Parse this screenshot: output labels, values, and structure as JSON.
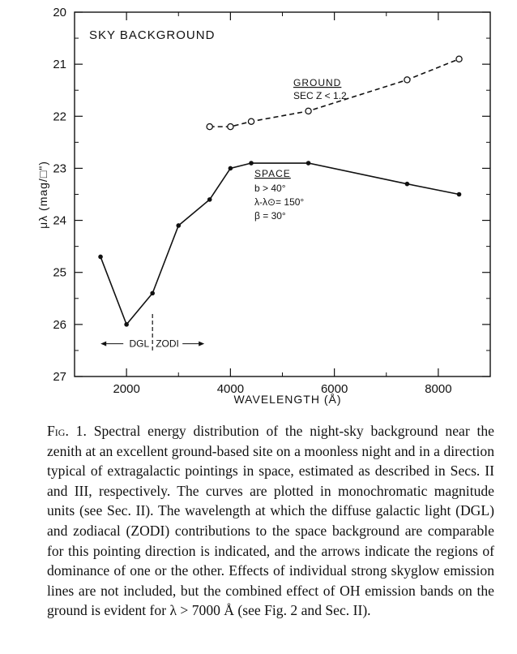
{
  "chart_data": {
    "type": "line",
    "title": "SKY BACKGROUND",
    "xlabel": "WAVELENGTH (Å)",
    "ylabel": "μλ (mag/□\")",
    "xlim": [
      1000,
      9000
    ],
    "ylim": [
      27,
      20
    ],
    "y_inverted": true,
    "grid": false,
    "x_ticks": [
      2000,
      4000,
      6000,
      8000
    ],
    "x_tick_labels": [
      "2000",
      "4000",
      "6000",
      "8000"
    ],
    "y_ticks": [
      20,
      21,
      22,
      23,
      24,
      25,
      26,
      27
    ],
    "y_tick_labels": [
      "20",
      "21",
      "22",
      "23",
      "24",
      "25",
      "26",
      "27"
    ],
    "series": [
      {
        "name": "GROUND",
        "style": "dashed",
        "marker": "open-circle",
        "x": [
          3600,
          4000,
          4400,
          5500,
          7400,
          8400
        ],
        "y": [
          22.2,
          22.2,
          22.1,
          21.9,
          21.3,
          20.9
        ],
        "annotation": [
          "GROUND",
          "SEC Z < 1.2"
        ]
      },
      {
        "name": "SPACE",
        "style": "solid",
        "marker": "filled-dot",
        "x": [
          1500,
          2000,
          2500,
          3000,
          3600,
          4000,
          4400,
          5500,
          7400,
          8400
        ],
        "y": [
          24.7,
          26.0,
          25.4,
          24.1,
          23.6,
          23.0,
          22.9,
          22.9,
          23.3,
          23.5
        ],
        "annotation": [
          "SPACE",
          "b > 40°",
          "λ-λ⊙= 150°",
          "β = 30°"
        ]
      }
    ],
    "divider": {
      "x": 2500,
      "left_label": "DGL",
      "right_label": "ZODI"
    }
  },
  "caption": {
    "fig_label": "Fig. 1.",
    "text": "Spectral energy distribution of the night-sky background near the zenith at an excellent ground-based site on a moonless night and in a direction typical of extragalactic pointings in space, estimated as described in Secs. II and III, respectively. The curves are plotted in monochromatic magnitude units (see Sec. II). The wavelength at which the diffuse galactic light (DGL) and zodiacal (ZODI) contributions to the space background are comparable for this pointing direction is indicated, and the arrows indicate the regions of dominance of one or the other. Effects of individual strong skyglow emission lines are not included, but the combined effect of OH emission bands on the ground is evident for λ > 7000 Å (see Fig. 2 and Sec. II)."
  }
}
